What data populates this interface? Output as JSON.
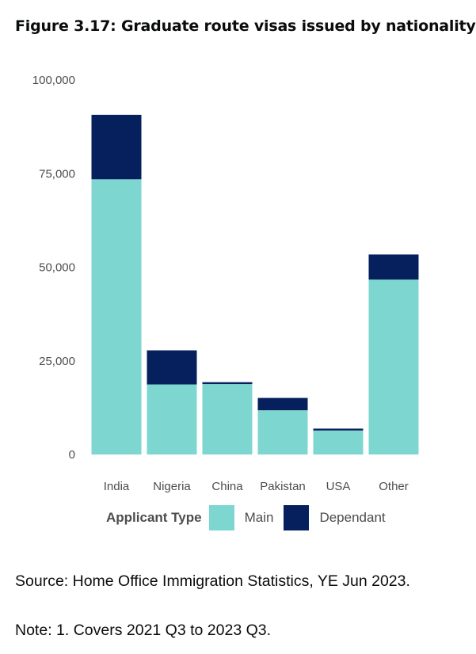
{
  "title": "Figure 3.17: Graduate route visas issued by nationality",
  "source": "Source: Home Office Immigration Statistics, YE Jun 2023.",
  "note": "Note: 1. Covers 2021 Q3 to 2023 Q3.",
  "chart_data": {
    "type": "bar",
    "stacked": true,
    "categories": [
      "India",
      "Nigeria",
      "China",
      "Pakistan",
      "USA",
      "Other"
    ],
    "series": [
      {
        "name": "Main",
        "color": "#7dd7d0",
        "values": [
          73500,
          18700,
          18800,
          11800,
          6400,
          46700
        ]
      },
      {
        "name": "Dependant",
        "color": "#06205e",
        "values": [
          17200,
          9100,
          500,
          3300,
          500,
          6700
        ]
      }
    ],
    "ylim": [
      0,
      100000
    ],
    "yticks": [
      0,
      25000,
      50000,
      75000,
      100000
    ],
    "ytick_labels": [
      "0",
      "25,000",
      "50,000",
      "75,000",
      "100,000"
    ],
    "grid": false,
    "legend_title": "Applicant Type",
    "legend_position": "bottom"
  }
}
